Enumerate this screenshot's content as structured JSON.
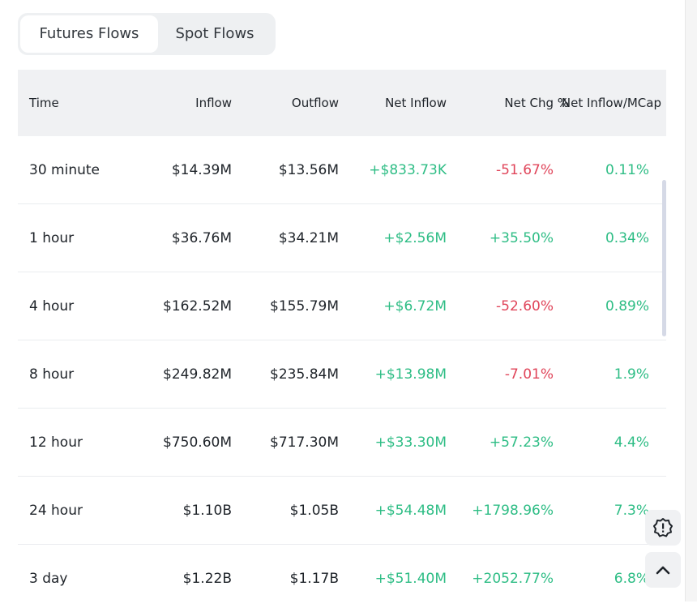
{
  "tabs": [
    {
      "label": "Futures Flows",
      "active": true
    },
    {
      "label": "Spot Flows",
      "active": false
    }
  ],
  "table": {
    "headers": [
      "Time",
      "Inflow",
      "Outflow",
      "Net Inflow",
      "Net Chg %",
      "Net Inflow/MCap"
    ],
    "rows": [
      {
        "time": "30 minute",
        "inflow": "$14.39M",
        "outflow": "$13.56M",
        "net_inflow": "+$833.73K",
        "net_chg": "-51.67%",
        "net_mcap": "0.11%"
      },
      {
        "time": "1 hour",
        "inflow": "$36.76M",
        "outflow": "$34.21M",
        "net_inflow": "+$2.56M",
        "net_chg": "+35.50%",
        "net_mcap": "0.34%"
      },
      {
        "time": "4 hour",
        "inflow": "$162.52M",
        "outflow": "$155.79M",
        "net_inflow": "+$6.72M",
        "net_chg": "-52.60%",
        "net_mcap": "0.89%"
      },
      {
        "time": "8 hour",
        "inflow": "$249.82M",
        "outflow": "$235.84M",
        "net_inflow": "+$13.98M",
        "net_chg": "-7.01%",
        "net_mcap": "1.9%"
      },
      {
        "time": "12 hour",
        "inflow": "$750.60M",
        "outflow": "$717.30M",
        "net_inflow": "+$33.30M",
        "net_chg": "+57.23%",
        "net_mcap": "4.4%"
      },
      {
        "time": "24 hour",
        "inflow": "$1.10B",
        "outflow": "$1.05B",
        "net_inflow": "+$54.48M",
        "net_chg": "+1798.96%",
        "net_mcap": "7.3%"
      },
      {
        "time": "3 day",
        "inflow": "$1.22B",
        "outflow": "$1.17B",
        "net_inflow": "+$51.40M",
        "net_chg": "+2052.77%",
        "net_mcap": "6.8%"
      }
    ]
  },
  "colors": {
    "positive": "#2ebd85",
    "negative": "#e0455a"
  },
  "floating_buttons": [
    {
      "icon": "alert-badge-icon"
    },
    {
      "icon": "chevron-up-icon"
    }
  ]
}
